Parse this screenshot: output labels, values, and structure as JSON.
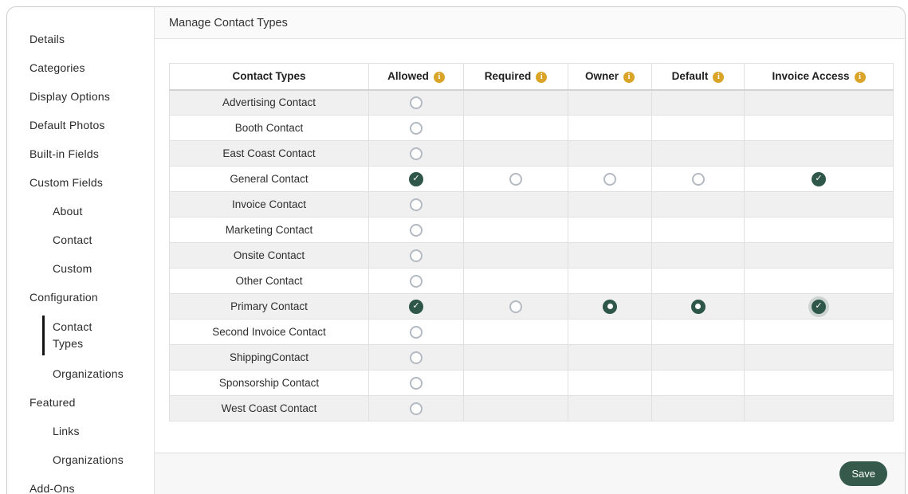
{
  "page": {
    "title": "Manage Contact Types"
  },
  "sidebar": {
    "items": [
      {
        "label": "Details",
        "level": 0,
        "active": false
      },
      {
        "label": "Categories",
        "level": 0,
        "active": false
      },
      {
        "label": "Display Options",
        "level": 0,
        "active": false
      },
      {
        "label": "Default Photos",
        "level": 0,
        "active": false
      },
      {
        "label": "Built-in Fields",
        "level": 0,
        "active": false
      },
      {
        "label": "Custom Fields",
        "level": 0,
        "active": false
      },
      {
        "label": "About",
        "level": 1,
        "active": false
      },
      {
        "label": "Contact",
        "level": 1,
        "active": false
      },
      {
        "label": "Custom",
        "level": 1,
        "active": false
      },
      {
        "label": "Configuration",
        "level": 0,
        "active": false
      },
      {
        "label": "Contact Types",
        "level": 1,
        "active": true
      },
      {
        "label": "Organizations",
        "level": 1,
        "active": false
      },
      {
        "label": "Featured",
        "level": 0,
        "active": false
      },
      {
        "label": "Links",
        "level": 1,
        "active": false
      },
      {
        "label": "Organizations",
        "level": 1,
        "active": false
      },
      {
        "label": "Add-Ons",
        "level": 0,
        "active": false
      }
    ]
  },
  "table": {
    "columns": [
      {
        "label": "Contact Types",
        "info": false
      },
      {
        "label": "Allowed",
        "info": true
      },
      {
        "label": "Required",
        "info": true
      },
      {
        "label": "Owner",
        "info": true
      },
      {
        "label": "Default",
        "info": true
      },
      {
        "label": "Invoice Access",
        "info": true
      }
    ],
    "rows": [
      {
        "label": "Advertising Contact",
        "cells": [
          "unchecked",
          "none",
          "none",
          "none",
          "none"
        ]
      },
      {
        "label": "Booth Contact",
        "cells": [
          "unchecked",
          "none",
          "none",
          "none",
          "none"
        ]
      },
      {
        "label": "East Coast Contact",
        "cells": [
          "unchecked",
          "none",
          "none",
          "none",
          "none"
        ]
      },
      {
        "label": "General Contact",
        "cells": [
          "checked",
          "unchecked",
          "unchecked",
          "unchecked",
          "checked"
        ]
      },
      {
        "label": "Invoice Contact",
        "cells": [
          "unchecked",
          "none",
          "none",
          "none",
          "none"
        ]
      },
      {
        "label": "Marketing Contact",
        "cells": [
          "unchecked",
          "none",
          "none",
          "none",
          "none"
        ]
      },
      {
        "label": "Onsite Contact",
        "cells": [
          "unchecked",
          "none",
          "none",
          "none",
          "none"
        ]
      },
      {
        "label": "Other Contact",
        "cells": [
          "unchecked",
          "none",
          "none",
          "none",
          "none"
        ]
      },
      {
        "label": "Primary Contact",
        "cells": [
          "checked",
          "unchecked",
          "radio-on",
          "radio-on",
          "checked-focus"
        ]
      },
      {
        "label": "Second Invoice Contact",
        "cells": [
          "unchecked",
          "none",
          "none",
          "none",
          "none"
        ]
      },
      {
        "label": "ShippingContact",
        "cells": [
          "unchecked",
          "none",
          "none",
          "none",
          "none"
        ]
      },
      {
        "label": "Sponsorship Contact",
        "cells": [
          "unchecked",
          "none",
          "none",
          "none",
          "none"
        ]
      },
      {
        "label": "West Coast Contact",
        "cells": [
          "unchecked",
          "none",
          "none",
          "none",
          "none"
        ]
      }
    ]
  },
  "footer": {
    "save_label": "Save"
  },
  "icons": {
    "info_glyph": "i",
    "check_glyph": "✓"
  },
  "colors": {
    "check_green": "#2e574a",
    "save_green": "#35594b",
    "info_amber": "#d9a427",
    "stripe_gray": "#f0f0f0"
  }
}
